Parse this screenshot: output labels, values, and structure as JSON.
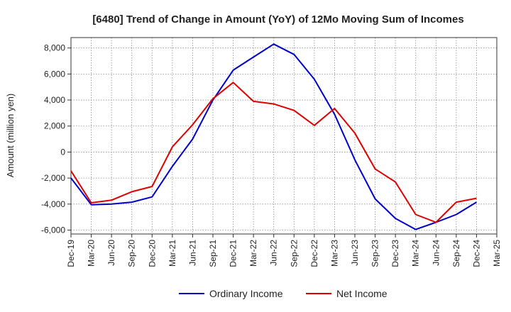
{
  "chart_data": {
    "type": "line",
    "title": "[6480]  Trend of Change in Amount (YoY) of 12Mo Moving Sum of Incomes",
    "xlabel": "",
    "ylabel": "Amount (million yen)",
    "ylim": [
      -6300,
      8800
    ],
    "yticks": [
      8000,
      6000,
      4000,
      2000,
      0,
      -2000,
      -4000,
      -6000
    ],
    "ytick_labels": [
      "8,000",
      "6,000",
      "4,000",
      "2,000",
      "0",
      "-2,000",
      "-4,000",
      "-6,000"
    ],
    "grid": true,
    "legend_position": "bottom-center",
    "categories": [
      "Dec-19",
      "Mar-20",
      "Jun-20",
      "Sep-20",
      "Dec-20",
      "Mar-21",
      "Jun-21",
      "Sep-21",
      "Dec-21",
      "Mar-22",
      "Jun-22",
      "Sep-22",
      "Dec-22",
      "Mar-23",
      "Jun-23",
      "Sep-23",
      "Dec-23",
      "Mar-24",
      "Jun-24",
      "Sep-24",
      "Dec-24",
      "Mar-25"
    ],
    "series": [
      {
        "name": "Ordinary Income",
        "color": "#0000cc",
        "values": [
          -2000,
          -4050,
          -4000,
          -3850,
          -3450,
          -1100,
          1000,
          4000,
          6300,
          7300,
          8300,
          7500,
          5600,
          2900,
          -600,
          -3600,
          -5100,
          -5950,
          -5400,
          -4800,
          -3850,
          null
        ]
      },
      {
        "name": "Net Income",
        "color": "#dd0000",
        "values": [
          -1450,
          -3900,
          -3700,
          -3050,
          -2650,
          400,
          2100,
          4100,
          5350,
          3900,
          3700,
          3200,
          2050,
          3350,
          1450,
          -1300,
          -2300,
          -4800,
          -5400,
          -3850,
          -3550,
          null
        ]
      }
    ]
  }
}
